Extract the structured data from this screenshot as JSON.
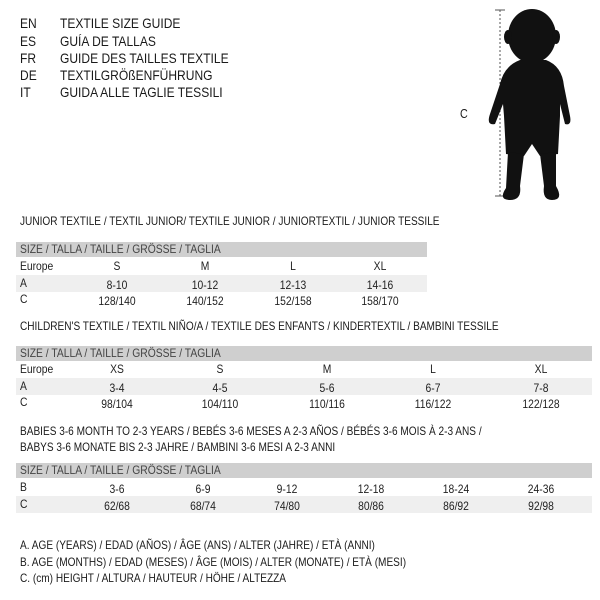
{
  "header": [
    {
      "code": "EN",
      "text": "TEXTILE SIZE GUIDE"
    },
    {
      "code": "ES",
      "text": "GUÍA DE TALLAS"
    },
    {
      "code": "FR",
      "text": "GUIDE DES TAILLES TEXTILE"
    },
    {
      "code": "DE",
      "text": "TEXTILGRÖßENFÜHRUNG"
    },
    {
      "code": "IT",
      "text": "GUIDA ALLE TAGLIE TESSILI"
    }
  ],
  "figure": {
    "measure_label": "C",
    "icon": "child-silhouette"
  },
  "size_header": "SIZE / TALLA / TAILLE / GRÖSSE / TAGLIA",
  "tables": [
    {
      "title": [
        "JUNIOR TEXTILE / TEXTIL JUNIOR/ TEXTILE JUNIOR / JUNIORTEXTIL / JUNIOR TESSILE"
      ],
      "rows": [
        {
          "label": "Europe",
          "values": [
            "S",
            "M",
            "L",
            "XL"
          ]
        },
        {
          "label": "A",
          "values": [
            "8-10",
            "10-12",
            "12-13",
            "14-16"
          ]
        },
        {
          "label": "C",
          "values": [
            "128/140",
            "140/152",
            "152/158",
            "158/170"
          ]
        }
      ]
    },
    {
      "title": [
        "CHILDREN'S TEXTILE / TEXTIL NIÑO/A / TEXTILE DES ENFANTS / KINDERTEXTIL / BAMBINI TESSILE"
      ],
      "rows": [
        {
          "label": "Europe",
          "values": [
            "XS",
            "S",
            "M",
            "L",
            "XL"
          ]
        },
        {
          "label": "A",
          "values": [
            "3-4",
            "4-5",
            "5-6",
            "6-7",
            "7-8"
          ]
        },
        {
          "label": "C",
          "values": [
            "98/104",
            "104/110",
            "110/116",
            "116/122",
            "122/128"
          ]
        }
      ]
    },
    {
      "title": [
        "BABIES 3-6 MONTH TO 2-3 YEARS / BEBÉS 3-6 MESES A 2-3 AÑOS / BÉBÉS 3-6 MOIS À 2-3 ANS /",
        "BABYS 3-6 MONATE BIS 2-3 JAHRE / BAMBINI 3-6 MESI A 2-3 ANNI"
      ],
      "rows": [
        {
          "label": "B",
          "values": [
            "3-6",
            "6-9",
            "9-12",
            "12-18",
            "18-24",
            "24-36"
          ]
        },
        {
          "label": "C",
          "values": [
            "62/68",
            "68/74",
            "74/80",
            "80/86",
            "86/92",
            "92/98"
          ]
        }
      ]
    }
  ],
  "legend": [
    "A. AGE (YEARS) / EDAD (AÑOS) / ÂGE (ANS) / ALTER (JAHRE) / ETÀ (ANNI)",
    "B. AGE (MONTHS) / EDAD (MESES) / ÂGE (MOIS) / ALTER (MONATE) / ETÀ (MESI)",
    "C. (cm) HEIGHT / ALTURA / HAUTEUR / HÖHE / ALTEZZA"
  ]
}
